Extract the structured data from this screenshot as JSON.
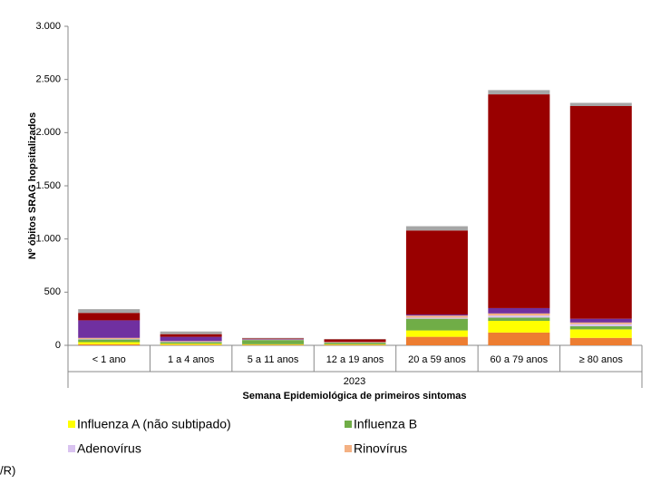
{
  "chart_data": {
    "type": "stacked_bar",
    "y_label": "Nº óbitos SRAG hopsitalizados",
    "x_label": "Semana Epidemiológica de primeiros sintomas",
    "group_label": "2023",
    "note": "/R)",
    "categories": [
      "< 1 ano",
      "1 a 4 anos",
      "5 a 11 anos",
      "12 a 19 anos",
      "20 a 59 anos",
      "60 a 79 anos",
      "≥ 80 anos"
    ],
    "series": [
      {
        "color": "#ed7d31",
        "values": [
          10,
          5,
          5,
          5,
          80,
          120,
          70
        ]
      },
      {
        "name": "Influenza A (não subtipado)",
        "color": "#ffff00",
        "values": [
          20,
          10,
          5,
          5,
          60,
          110,
          80
        ]
      },
      {
        "name": "Influenza B",
        "color": "#70ad47",
        "values": [
          25,
          15,
          40,
          15,
          110,
          30,
          30
        ]
      },
      {
        "name": "Adenovírus",
        "color": "#d9c3f0",
        "values": [
          5,
          5,
          2,
          2,
          10,
          20,
          20
        ]
      },
      {
        "name": "Rinovírus",
        "color": "#f4b183",
        "values": [
          10,
          5,
          3,
          3,
          20,
          20,
          15
        ]
      },
      {
        "color": "#7030a0",
        "values": [
          165,
          40,
          5,
          2,
          10,
          50,
          35
        ]
      },
      {
        "color": "#990000",
        "values": [
          70,
          25,
          5,
          25,
          790,
          2010,
          2000
        ]
      },
      {
        "color": "#a6a6a6",
        "values": [
          35,
          25,
          5,
          3,
          40,
          40,
          30
        ]
      }
    ],
    "ylim": [
      0,
      3000
    ],
    "yticks": [
      0,
      500,
      {
        "value": 1000,
        "label": "1.000"
      },
      {
        "value": 1500,
        "label": "1.500"
      },
      {
        "value": 2000,
        "label": "2.000"
      },
      {
        "value": 2500,
        "label": "2.500"
      },
      {
        "value": 3000,
        "label": "3.000"
      }
    ]
  }
}
